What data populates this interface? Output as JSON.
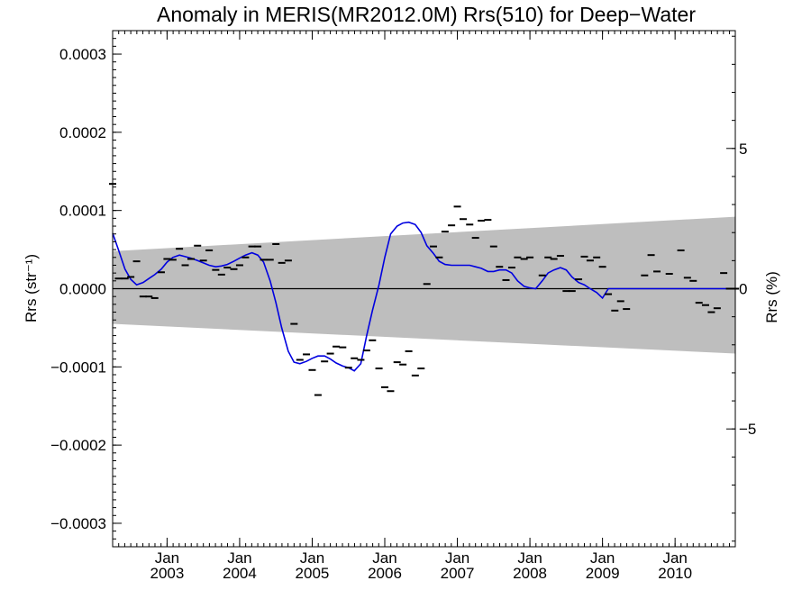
{
  "chart_data": {
    "type": "line",
    "title": "Anomaly in MERIS(MR2012.0M) Rrs(510) for Deep−Water",
    "ylabel": "Rrs (str⁻¹)",
    "ylabel_right": "Rrs (%)",
    "xlim": [
      2002.25,
      2010.83
    ],
    "ylim": [
      -0.00033,
      0.00033
    ],
    "ylim_right": [
      -9.2,
      9.2
    ],
    "grid": false,
    "y_ticks": [
      {
        "value": 0.0003,
        "label": "0.0003"
      },
      {
        "value": 0.0002,
        "label": "0.0002"
      },
      {
        "value": 0.0001,
        "label": "0.0001"
      },
      {
        "value": 0.0,
        "label": "0.0000"
      },
      {
        "value": -0.0001,
        "label": "−0.0001"
      },
      {
        "value": -0.0002,
        "label": "−0.0002"
      },
      {
        "value": -0.0003,
        "label": "−0.0003"
      }
    ],
    "y_ticks_right": [
      {
        "value": 5,
        "label": "5"
      },
      {
        "value": 0,
        "label": "0"
      },
      {
        "value": -5,
        "label": "−5"
      }
    ],
    "x_ticks": [
      {
        "value": 2003.0,
        "month": "Jan",
        "year": "2003"
      },
      {
        "value": 2004.0,
        "month": "Jan",
        "year": "2004"
      },
      {
        "value": 2005.0,
        "month": "Jan",
        "year": "2005"
      },
      {
        "value": 2006.0,
        "month": "Jan",
        "year": "2006"
      },
      {
        "value": 2007.0,
        "month": "Jan",
        "year": "2007"
      },
      {
        "value": 2008.0,
        "month": "Jan",
        "year": "2008"
      },
      {
        "value": 2009.0,
        "month": "Jan",
        "year": "2009"
      },
      {
        "value": 2010.0,
        "month": "Jan",
        "year": "2010"
      }
    ],
    "band": {
      "x": [
        2002.25,
        2010.83
      ],
      "upper": [
        4.8e-05,
        9.2e-05
      ],
      "lower": [
        -4.5e-05,
        -8.3e-05
      ],
      "color": "#bebebe"
    },
    "colors": {
      "monthly": "#000000",
      "smooth": "#0000e0",
      "zero_line": "#000000"
    },
    "series": [
      {
        "kind": "monthly",
        "style": "dash",
        "x": [
          2002.25,
          2002.33,
          2002.42,
          2002.5,
          2002.58,
          2002.67,
          2002.75,
          2002.83,
          2002.92,
          2003.0,
          2003.08,
          2003.17,
          2003.25,
          2003.33,
          2003.42,
          2003.5,
          2003.58,
          2003.67,
          2003.75,
          2003.83,
          2003.92,
          2004.0,
          2004.08,
          2004.17,
          2004.25,
          2004.33,
          2004.42,
          2004.5,
          2004.58,
          2004.67,
          2004.75,
          2004.83,
          2004.92,
          2005.0,
          2005.08,
          2005.17,
          2005.25,
          2005.33,
          2005.42,
          2005.5,
          2005.58,
          2005.67,
          2005.75,
          2005.83,
          2005.92,
          2006.0,
          2006.08,
          2006.17,
          2006.25,
          2006.33,
          2006.42,
          2006.5,
          2006.58,
          2006.67,
          2006.75,
          2006.83,
          2006.92,
          2007.0,
          2007.08,
          2007.17,
          2007.25,
          2007.33,
          2007.42,
          2007.5,
          2007.58,
          2007.67,
          2007.75,
          2007.83,
          2007.92,
          2008.0,
          2008.17,
          2008.25,
          2008.33,
          2008.42,
          2008.5,
          2008.58,
          2008.67,
          2008.75,
          2008.83,
          2008.92,
          2009.0,
          2009.08,
          2009.17,
          2009.25,
          2009.33,
          2009.58,
          2009.67,
          2009.75,
          2009.92,
          2010.08,
          2010.17,
          2010.25,
          2010.33,
          2010.42,
          2010.5,
          2010.58,
          2010.67,
          2010.75,
          2010.83
        ],
        "values": [
          0.000134,
          1.3e-05,
          1.3e-05,
          1.5e-05,
          3.5e-05,
          -1e-05,
          -1e-05,
          -1.2e-05,
          2.1e-05,
          3.8e-05,
          3.7e-05,
          5.1e-05,
          3e-05,
          3.8e-05,
          5.5e-05,
          3.6e-05,
          4.9e-05,
          2.4e-05,
          1.8e-05,
          2.7e-05,
          2.5e-05,
          3e-05,
          4e-05,
          5.4e-05,
          5.4e-05,
          3.7e-05,
          3.7e-05,
          5.7e-05,
          3.3e-05,
          3.6e-05,
          -4.5e-05,
          -9.1e-05,
          -8.4e-05,
          -0.000104,
          -0.000136,
          -9.3e-05,
          -8.3e-05,
          -7.4e-05,
          -7.5e-05,
          -0.000101,
          -8.9e-05,
          -9.1e-05,
          -7.9e-05,
          -6.6e-05,
          -0.000102,
          -0.000126,
          -0.000131,
          -9.4e-05,
          -9.7e-05,
          -8e-05,
          -0.000111,
          -0.000102,
          6e-06,
          5.4e-05,
          4e-05,
          7.3e-05,
          8.1e-05,
          0.000105,
          8.9e-05,
          8.2e-05,
          6.5e-05,
          8.7e-05,
          8.8e-05,
          5.4e-05,
          2.8e-05,
          1.1e-05,
          2.7e-05,
          4e-05,
          3.8e-05,
          4e-05,
          1.7e-05,
          4e-05,
          3.8e-05,
          4.2e-05,
          -3e-06,
          -3e-06,
          1.2e-05,
          4.1e-05,
          3.6e-05,
          4e-05,
          2.8e-05,
          -7e-06,
          -2.8e-05,
          -1.6e-05,
          -2.6e-05,
          1.7e-05,
          4.3e-05,
          2.2e-05,
          1.9e-05,
          4.9e-05,
          1.4e-05,
          1e-05,
          -1.8e-05,
          -2.1e-05,
          -3e-05,
          -2.5e-05,
          2e-05,
          0.0,
          0.0
        ]
      },
      {
        "kind": "smoothed",
        "style": "line",
        "x": [
          2002.25,
          2002.33,
          2002.42,
          2002.5,
          2002.58,
          2002.67,
          2002.75,
          2002.83,
          2002.92,
          2003.0,
          2003.08,
          2003.17,
          2003.25,
          2003.33,
          2003.42,
          2003.5,
          2003.58,
          2003.67,
          2003.75,
          2003.83,
          2003.92,
          2004.0,
          2004.08,
          2004.17,
          2004.25,
          2004.33,
          2004.42,
          2004.5,
          2004.58,
          2004.67,
          2004.75,
          2004.83,
          2004.92,
          2005.0,
          2005.08,
          2005.17,
          2005.25,
          2005.33,
          2005.42,
          2005.5,
          2005.58,
          2005.67,
          2005.75,
          2005.83,
          2005.92,
          2006.0,
          2006.08,
          2006.17,
          2006.25,
          2006.33,
          2006.42,
          2006.5,
          2006.58,
          2006.67,
          2006.75,
          2006.83,
          2006.92,
          2007.0,
          2007.08,
          2007.17,
          2007.25,
          2007.33,
          2007.42,
          2007.5,
          2007.58,
          2007.67,
          2007.75,
          2007.83,
          2007.92,
          2008.0,
          2008.08,
          2008.17,
          2008.25,
          2008.33,
          2008.42,
          2008.5,
          2008.58,
          2008.67,
          2008.75,
          2008.83,
          2008.92,
          2009.0,
          2009.08,
          2009.17,
          2009.25,
          2009.33,
          2009.42,
          2009.5,
          2009.58,
          2009.67,
          2009.75,
          2009.83,
          2009.92,
          2010.0,
          2010.08,
          2010.17,
          2010.25,
          2010.33,
          2010.42,
          2010.5,
          2010.58,
          2010.67,
          2010.75,
          2010.83
        ],
        "values": [
          7.1e-05,
          5e-05,
          2.5e-05,
          1.2e-05,
          5e-06,
          8e-06,
          1.3e-05,
          1.8e-05,
          2.5e-05,
          3.4e-05,
          4e-05,
          4.3e-05,
          4.1e-05,
          3.9e-05,
          3.6e-05,
          3.3e-05,
          3e-05,
          2.8e-05,
          2.9e-05,
          3.1e-05,
          3.5e-05,
          3.9e-05,
          4.3e-05,
          4.6e-05,
          4.3e-05,
          3.4e-05,
          1e-05,
          -1.8e-05,
          -5e-05,
          -8e-05,
          -9.4e-05,
          -9.6e-05,
          -9.3e-05,
          -8.9e-05,
          -8.6e-05,
          -8.6e-05,
          -9e-05,
          -9.5e-05,
          -9.9e-05,
          -0.000101,
          -0.000105,
          -9.6e-05,
          -6e-05,
          -2.8e-05,
          5e-06,
          4e-05,
          7e-05,
          8e-05,
          8.4e-05,
          8.5e-05,
          8.2e-05,
          7.2e-05,
          5.5e-05,
          4.5e-05,
          3.5e-05,
          3.1e-05,
          3e-05,
          3e-05,
          3e-05,
          3e-05,
          2.8e-05,
          2.6e-05,
          2.2e-05,
          2.2e-05,
          2.4e-05,
          2.4e-05,
          2e-05,
          1e-05,
          3e-06,
          1e-06,
          0.0,
          1e-05,
          2e-05,
          2.4e-05,
          2.7e-05,
          2.4e-05,
          1.5e-05,
          8e-06,
          5e-06,
          0.0,
          -5e-06,
          -1.2e-05,
          0.0,
          0.0,
          0.0,
          0.0,
          0.0,
          0.0,
          0.0,
          0.0,
          0.0,
          0.0,
          0.0,
          0.0,
          0.0,
          0.0,
          0.0,
          0.0,
          0.0,
          0.0,
          0.0,
          0.0,
          0.0,
          0.0
        ]
      }
    ]
  }
}
